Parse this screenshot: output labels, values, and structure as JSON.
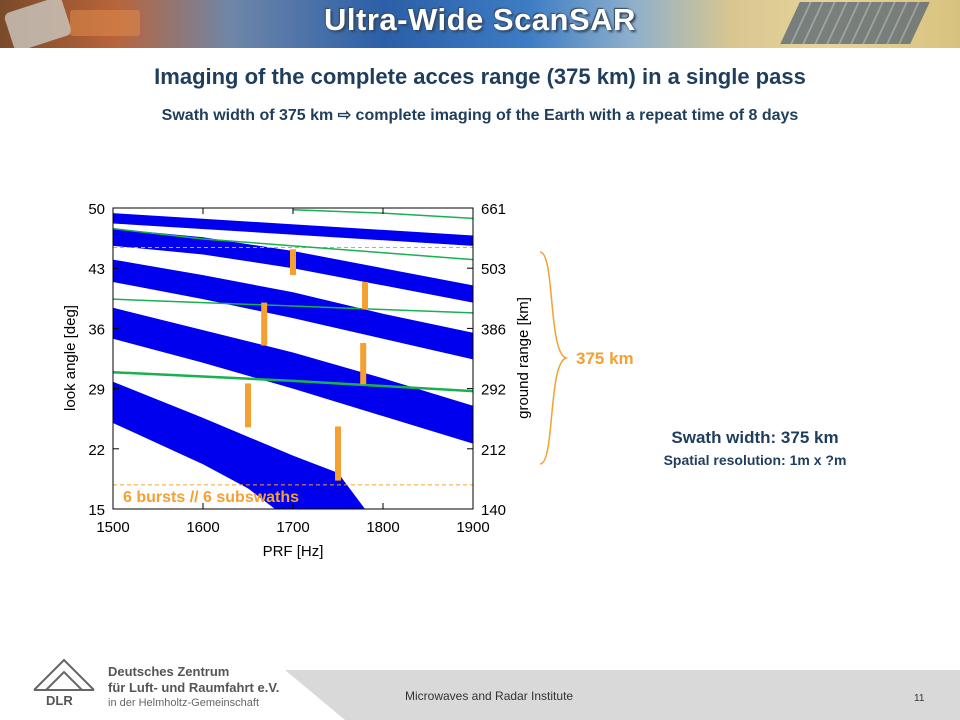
{
  "slide": {
    "title": "Ultra-Wide ScanSAR",
    "headline": "Imaging of the complete acces range (375 km) in a single pass",
    "subline": "Swath width of 375 km ⇨ complete imaging of the Earth with a repeat time of 8 days",
    "swath_note": "Swath width: 375 km",
    "resolution_note": "Spatial resolution: 1m x ?m",
    "range_bracket_label": "375 km",
    "colors": {
      "title_text": "#ffffff",
      "heading": "#1f3d5c",
      "accent_orange": "#f5a030",
      "band_blue": "#0000ee",
      "line_green": "#18b050"
    }
  },
  "chart_data": {
    "type": "line",
    "title": "",
    "xlabel": "PRF [Hz]",
    "ylabel": "look angle [deg]",
    "y2label": "ground range [km]",
    "xlim": [
      1500,
      1900
    ],
    "ylim": [
      15,
      50
    ],
    "x_ticks": [
      "1500",
      "1600",
      "1700",
      "1800",
      "1900"
    ],
    "y_ticks": [
      "50",
      "43",
      "36",
      "29",
      "22",
      "15"
    ],
    "y2_ticks": [
      "661",
      "503",
      "386",
      "292",
      "212",
      "140"
    ],
    "grid": false,
    "annotation": "6 bursts // 6 subswaths",
    "blind_range_bands": [
      {
        "name": "",
        "top": [
          [
            1500,
            49.4
          ],
          [
            1900,
            46.8
          ]
        ],
        "bottom": [
          [
            1500,
            48.2
          ],
          [
            1900,
            45.6
          ]
        ]
      },
      {
        "name": "",
        "top": [
          [
            1500,
            47.6
          ],
          [
            1600,
            46.6
          ],
          [
            1700,
            45.0
          ],
          [
            1800,
            43.0
          ],
          [
            1900,
            41.0
          ]
        ],
        "bottom": [
          [
            1500,
            45.6
          ],
          [
            1600,
            44.6
          ],
          [
            1700,
            43.0
          ],
          [
            1800,
            41.0
          ],
          [
            1900,
            39.0
          ]
        ]
      },
      {
        "name": "",
        "top": [
          [
            1500,
            44.0
          ],
          [
            1600,
            42.2
          ],
          [
            1700,
            40.2
          ],
          [
            1800,
            37.7
          ],
          [
            1900,
            35.5
          ]
        ],
        "bottom": [
          [
            1500,
            41.4
          ],
          [
            1600,
            39.4
          ],
          [
            1700,
            37.2
          ],
          [
            1800,
            34.8
          ],
          [
            1900,
            32.4
          ]
        ]
      },
      {
        "name": "",
        "top": [
          [
            1500,
            38.4
          ],
          [
            1600,
            35.8
          ],
          [
            1700,
            33.2
          ],
          [
            1800,
            30.2
          ],
          [
            1900,
            27.0
          ]
        ],
        "bottom": [
          [
            1500,
            34.8
          ],
          [
            1600,
            32.0
          ],
          [
            1700,
            29.0
          ],
          [
            1800,
            25.8
          ],
          [
            1900,
            22.6
          ]
        ]
      },
      {
        "name": "",
        "top": [
          [
            1500,
            29.8
          ],
          [
            1600,
            25.6
          ],
          [
            1700,
            21.2
          ],
          [
            1750,
            19.2
          ],
          [
            1780,
            15.0
          ]
        ],
        "bottom": [
          [
            1500,
            25.0
          ],
          [
            1600,
            20.2
          ],
          [
            1650,
            17.4
          ],
          [
            1680,
            15.0
          ]
        ]
      }
    ],
    "nadir_lines": [
      {
        "name": "",
        "points": [
          [
            1500,
            47.6
          ],
          [
            1600,
            46.4
          ],
          [
            1700,
            45.6
          ],
          [
            1800,
            44.8
          ],
          [
            1900,
            44.0
          ]
        ]
      },
      {
        "name": "",
        "points": [
          [
            1500,
            39.4
          ],
          [
            1600,
            39.0
          ],
          [
            1700,
            38.6
          ],
          [
            1800,
            38.2
          ],
          [
            1900,
            37.8
          ]
        ]
      },
      {
        "name": "",
        "points": [
          [
            1500,
            30.9
          ],
          [
            1600,
            30.4
          ],
          [
            1700,
            29.9
          ],
          [
            1800,
            29.3
          ],
          [
            1900,
            28.7
          ]
        ]
      },
      {
        "name": "",
        "points": [
          [
            1700,
            49.8
          ],
          [
            1800,
            49.4
          ],
          [
            1900,
            48.8
          ]
        ]
      }
    ],
    "subswath_bars": [
      {
        "x": 1650,
        "y_low": 24.5,
        "y_high": 29.6
      },
      {
        "x": 1668,
        "y_low": 34.0,
        "y_high": 39.0
      },
      {
        "x": 1700,
        "y_low": 42.2,
        "y_high": 45.2
      },
      {
        "x": 1750,
        "y_low": 18.3,
        "y_high": 24.6
      },
      {
        "x": 1778,
        "y_low": 29.5,
        "y_high": 34.3
      },
      {
        "x": 1780,
        "y_low": 38.2,
        "y_high": 41.4
      }
    ],
    "reference_levels": [
      45.4,
      17.8
    ]
  },
  "footer": {
    "institute": "Microwaves and Radar Institute",
    "page": "11",
    "logo_abbr": "DLR",
    "logo_line1": "Deutsches Zentrum",
    "logo_line2": "für Luft- und Raumfahrt e.V.",
    "logo_line3": "in der Helmholtz-Gemeinschaft"
  }
}
